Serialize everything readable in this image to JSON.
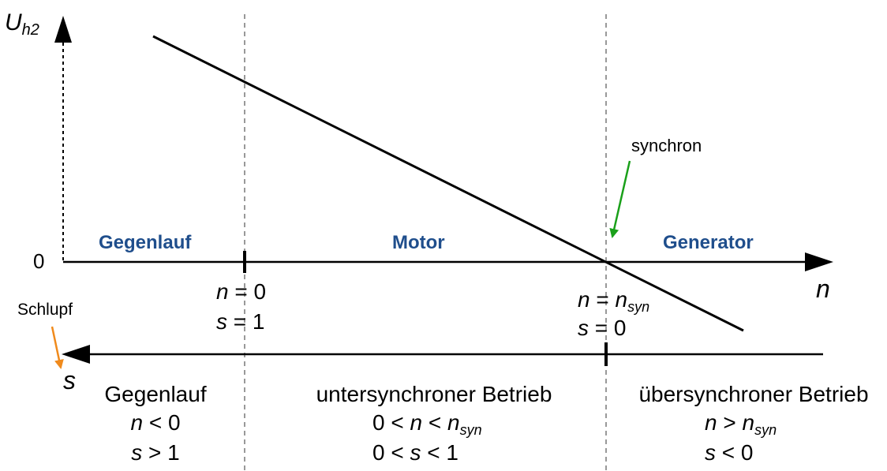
{
  "axes": {
    "y_label": "U",
    "y_label_sub": "h2",
    "y_zero": "0",
    "n_label": "n",
    "s_label": "s"
  },
  "regions": {
    "gegenlauf": "Gegenlauf",
    "motor": "Motor",
    "generator": "Generator"
  },
  "annotations": {
    "synchron": "synchron",
    "schlupf": "Schlupf"
  },
  "markers": {
    "n0": {
      "n": "n",
      "n_rel": " = 0",
      "s": "s",
      "s_rel": " = 1"
    },
    "nsyn": {
      "n": "n",
      "n_rel": " = ",
      "n_val": "n",
      "n_sub": "syn",
      "s": "s",
      "s_rel": " = 0"
    }
  },
  "bottom": {
    "gegenlauf": {
      "title": "Gegenlauf",
      "l1_var": "n",
      "l1_rel": " < 0",
      "l2_var": "s",
      "l2_rel": " > 1"
    },
    "unter": {
      "title": "untersynchroner Betrieb",
      "l1_pre": "0 < ",
      "l1_var": "n",
      "l1_rel": " < ",
      "l1_val": "n",
      "l1_sub": "syn",
      "l2_pre": "0 < ",
      "l2_var": "s",
      "l2_rel": " < 1"
    },
    "ueber": {
      "title": "übersynchroner Betrieb",
      "l1_var": "n",
      "l1_rel": " > ",
      "l1_val": "n",
      "l1_sub": "syn",
      "l2_var": "s",
      "l2_rel": " < 0"
    }
  },
  "colors": {
    "region_text": "#1f4e8c",
    "synchron_arrow": "#1aa01a",
    "schlupf_arrow": "#f08a1c",
    "dashed": "#999999"
  }
}
